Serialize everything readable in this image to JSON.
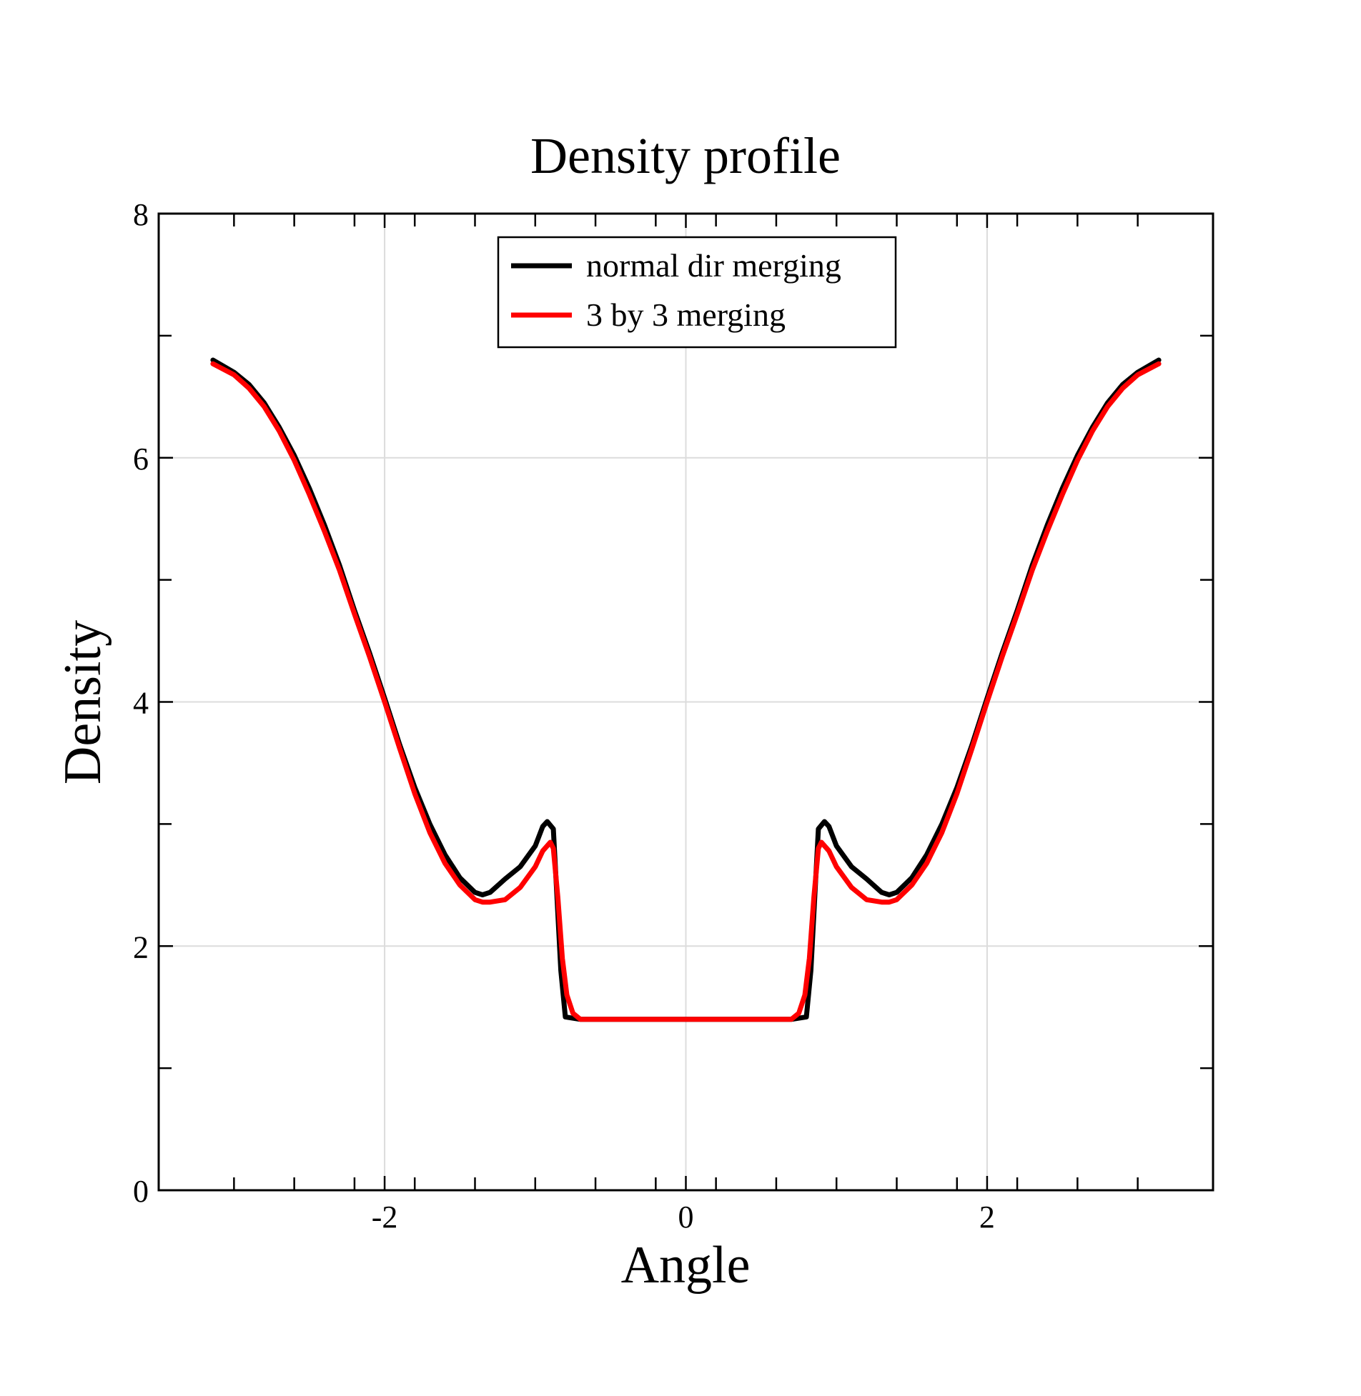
{
  "chart_data": {
    "type": "line",
    "title": "Density profile",
    "xlabel": "Angle",
    "ylabel": "Density",
    "xlim": [
      -3.5,
      3.5
    ],
    "ylim": [
      0,
      8
    ],
    "x_tick_labels": [
      "-2",
      "0",
      "2"
    ],
    "y_tick_labels": [
      "0",
      "2",
      "4",
      "6",
      "8"
    ],
    "grid": true,
    "legend_position": "top-center",
    "series": [
      {
        "name": "normal dir merging",
        "color": "#000000",
        "x": [
          -3.14,
          -3.0,
          -2.9,
          -2.8,
          -2.7,
          -2.6,
          -2.5,
          -2.4,
          -2.3,
          -2.2,
          -2.1,
          -2.0,
          -1.9,
          -1.8,
          -1.7,
          -1.6,
          -1.5,
          -1.4,
          -1.35,
          -1.3,
          -1.2,
          -1.1,
          -1.0,
          -0.95,
          -0.92,
          -0.88,
          -0.86,
          -0.83,
          -0.8,
          -0.7,
          -0.5,
          0.0,
          0.5,
          0.7,
          0.8,
          0.83,
          0.86,
          0.88,
          0.92,
          0.95,
          1.0,
          1.1,
          1.2,
          1.3,
          1.35,
          1.4,
          1.5,
          1.6,
          1.7,
          1.8,
          1.9,
          2.0,
          2.1,
          2.2,
          2.3,
          2.4,
          2.5,
          2.6,
          2.7,
          2.8,
          2.9,
          3.0,
          3.14
        ],
        "y": [
          6.8,
          6.7,
          6.6,
          6.45,
          6.25,
          6.02,
          5.75,
          5.45,
          5.12,
          4.75,
          4.4,
          4.03,
          3.65,
          3.3,
          3.0,
          2.75,
          2.56,
          2.44,
          2.42,
          2.44,
          2.55,
          2.65,
          2.82,
          2.98,
          3.02,
          2.96,
          2.5,
          1.8,
          1.42,
          1.4,
          1.4,
          1.4,
          1.4,
          1.4,
          1.42,
          1.8,
          2.5,
          2.96,
          3.02,
          2.98,
          2.82,
          2.65,
          2.55,
          2.44,
          2.42,
          2.44,
          2.56,
          2.75,
          3.0,
          3.3,
          3.65,
          4.03,
          4.4,
          4.75,
          5.12,
          5.45,
          5.75,
          6.02,
          6.25,
          6.45,
          6.6,
          6.7,
          6.8
        ]
      },
      {
        "name": "3 by 3 merging",
        "color": "#ff0000",
        "x": [
          -3.14,
          -3.0,
          -2.9,
          -2.8,
          -2.7,
          -2.6,
          -2.5,
          -2.4,
          -2.3,
          -2.2,
          -2.1,
          -2.0,
          -1.9,
          -1.8,
          -1.7,
          -1.6,
          -1.5,
          -1.4,
          -1.35,
          -1.3,
          -1.2,
          -1.1,
          -1.0,
          -0.95,
          -0.9,
          -0.88,
          -0.85,
          -0.82,
          -0.79,
          -0.75,
          -0.7,
          -0.5,
          0.0,
          0.5,
          0.7,
          0.75,
          0.79,
          0.82,
          0.85,
          0.88,
          0.9,
          0.95,
          1.0,
          1.1,
          1.2,
          1.3,
          1.35,
          1.4,
          1.5,
          1.6,
          1.7,
          1.8,
          1.9,
          2.0,
          2.1,
          2.2,
          2.3,
          2.4,
          2.5,
          2.6,
          2.7,
          2.8,
          2.9,
          3.0,
          3.14
        ],
        "y": [
          6.77,
          6.68,
          6.57,
          6.42,
          6.22,
          5.98,
          5.7,
          5.4,
          5.08,
          4.72,
          4.37,
          4.0,
          3.62,
          3.25,
          2.93,
          2.68,
          2.5,
          2.38,
          2.36,
          2.36,
          2.38,
          2.48,
          2.65,
          2.78,
          2.85,
          2.8,
          2.4,
          1.9,
          1.6,
          1.45,
          1.4,
          1.4,
          1.4,
          1.4,
          1.4,
          1.45,
          1.6,
          1.9,
          2.4,
          2.8,
          2.85,
          2.78,
          2.65,
          2.48,
          2.38,
          2.36,
          2.36,
          2.38,
          2.5,
          2.68,
          2.93,
          3.25,
          3.62,
          4.0,
          4.37,
          4.72,
          5.08,
          5.4,
          5.7,
          5.98,
          6.22,
          6.42,
          6.57,
          6.68,
          6.77
        ]
      }
    ]
  }
}
